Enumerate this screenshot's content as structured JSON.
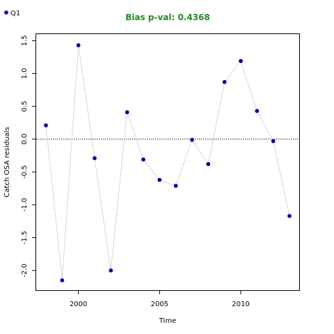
{
  "chart_data": {
    "type": "scatter",
    "title": "Bias p-val: 0.4368",
    "xlabel": "Time",
    "ylabel": "Catch OSA residuals",
    "xlim": [
      1997.4,
      2013.6
    ],
    "ylim": [
      -2.3,
      1.6
    ],
    "x_ticks": [
      2000,
      2005,
      2010
    ],
    "y_ticks": [
      -2.0,
      -1.5,
      -1.0,
      -0.5,
      0.0,
      0.5,
      1.0,
      1.5
    ],
    "y_tick_labels": [
      "-2.0",
      "-1.5",
      "-1.0",
      "-0.5",
      "0.0",
      "0.5",
      "1.0",
      "1.5"
    ],
    "reference_line": 0.0,
    "grid": false,
    "legend_position": "top-left",
    "series": [
      {
        "name": "Q1",
        "x": [
          1998,
          1999,
          2000,
          2001,
          2002,
          2003,
          2004,
          2005,
          2006,
          2007,
          2008,
          2009,
          2010,
          2011,
          2012,
          2013
        ],
        "values": [
          0.21,
          -2.15,
          1.43,
          -0.29,
          -2.0,
          0.41,
          -0.31,
          -0.62,
          -0.71,
          -0.01,
          -0.38,
          0.87,
          1.19,
          0.43,
          -0.03,
          -1.17
        ]
      }
    ],
    "colors": {
      "title": "#228b22",
      "point_fill": "#00008b",
      "point_stroke": "#0000cd",
      "connector": "#d3d3d3",
      "reference_line": "#000000"
    }
  }
}
